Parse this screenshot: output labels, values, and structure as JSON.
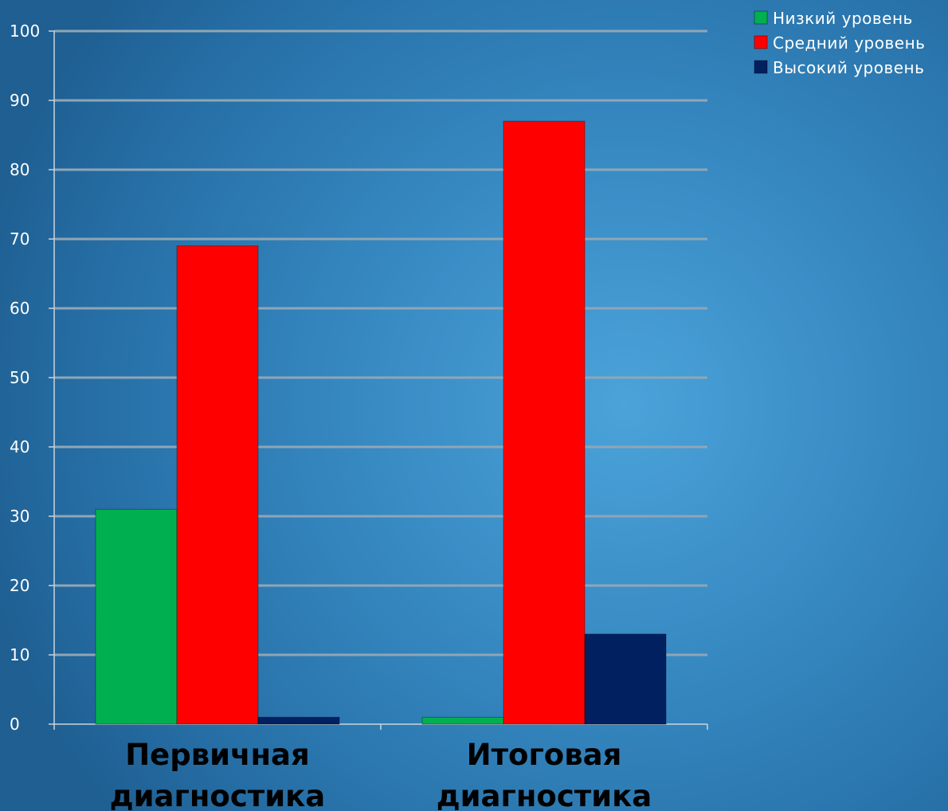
{
  "chart_data": {
    "type": "bar",
    "categories": [
      [
        "Первичная",
        "диагностика"
      ],
      [
        "Итоговая",
        "диагностика"
      ]
    ],
    "series": [
      {
        "name": "Низкий уровень",
        "values": [
          31,
          1
        ],
        "color": "#00b050"
      },
      {
        "name": "Средний уровень",
        "values": [
          69,
          87
        ],
        "color": "#ff0000"
      },
      {
        "name": "Высокий уровень",
        "values": [
          1,
          13
        ],
        "color": "#002060"
      }
    ],
    "ylim": [
      0,
      100
    ],
    "yticks": [
      0,
      10,
      20,
      30,
      40,
      50,
      60,
      70,
      80,
      90,
      100
    ],
    "grid": true,
    "legend_position": "top-right",
    "title": "",
    "xlabel": "",
    "ylabel": ""
  }
}
